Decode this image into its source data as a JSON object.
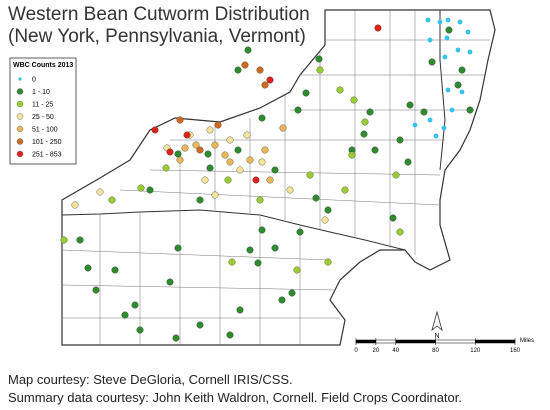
{
  "title": [
    "Western Bean Cutworm Distribution",
    "(New York, Pennsylvania, Vermont)"
  ],
  "legend": {
    "title": "WBC Counts 2013",
    "items": [
      {
        "label": "0",
        "color": "#33c3ee"
      },
      {
        "label": "1 - 10",
        "color": "#2e8b2e"
      },
      {
        "label": "11 - 25",
        "color": "#9acd32"
      },
      {
        "label": "25 - 50",
        "color": "#f3e39c"
      },
      {
        "label": "51 - 100",
        "color": "#e9b65a"
      },
      {
        "label": "101 - 250",
        "color": "#cf6a1e"
      },
      {
        "label": "251 - 853",
        "color": "#dd2218"
      }
    ]
  },
  "scale": {
    "ticks": [
      0,
      20,
      40,
      80,
      120,
      160
    ],
    "unit": "Miles"
  },
  "north": "N",
  "credits": [
    "Map courtesy: Steve DeGloria, Cornell IRIS/CSS.",
    "Summary data courtesy: John Keith Waldron, Cornell. Field Crops Coordinator."
  ]
}
